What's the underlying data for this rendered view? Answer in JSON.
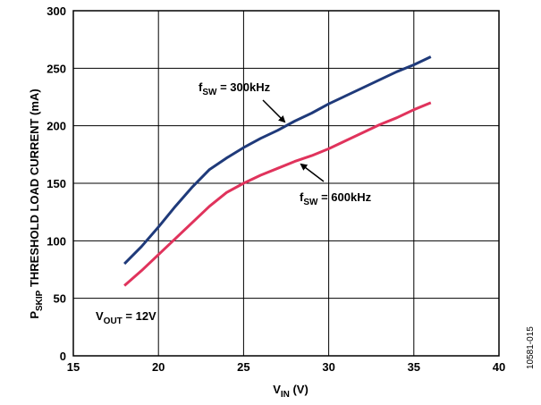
{
  "chart_data": {
    "type": "line",
    "xlabel": {
      "main": "V",
      "sub": "IN",
      "tail": " (V)"
    },
    "ylabel": {
      "main": "P",
      "sub": "SKIP",
      "tail": " THRESHOLD LOAD CURRENT (mA)"
    },
    "xlim": [
      15,
      40
    ],
    "ylim": [
      0,
      300
    ],
    "xticks": [
      "15",
      "20",
      "25",
      "30",
      "35",
      "40"
    ],
    "yticks": [
      "0",
      "50",
      "100",
      "150",
      "200",
      "250",
      "300"
    ],
    "grid": true,
    "series": [
      {
        "name": {
          "main": "f",
          "sub": "SW",
          "tail": " = 300kHz"
        },
        "color": "#1f3a7a",
        "x": [
          18,
          19,
          20,
          21,
          22,
          23,
          24,
          25,
          26,
          27,
          28,
          29,
          30,
          31,
          32,
          33,
          34,
          35,
          36
        ],
        "y": [
          80,
          95,
          112,
          130,
          147,
          162,
          172,
          181,
          189,
          196,
          204,
          211,
          219,
          226,
          233,
          240,
          247,
          253,
          260
        ]
      },
      {
        "name": {
          "main": "f",
          "sub": "SW",
          "tail": " = 600kHz"
        },
        "color": "#e0335c",
        "x": [
          18,
          19,
          20,
          21,
          22,
          23,
          24,
          25,
          26,
          27,
          28,
          29,
          30,
          31,
          32,
          33,
          34,
          35,
          36
        ],
        "y": [
          61,
          74,
          88,
          102,
          116,
          130,
          142,
          150,
          157,
          163,
          169,
          174,
          180,
          187,
          194,
          201,
          207,
          214,
          220
        ]
      }
    ],
    "annotations": [
      {
        "main": "V",
        "sub": "OUT",
        "tail": " = 12V"
      }
    ],
    "figure_id": "10581-015"
  }
}
